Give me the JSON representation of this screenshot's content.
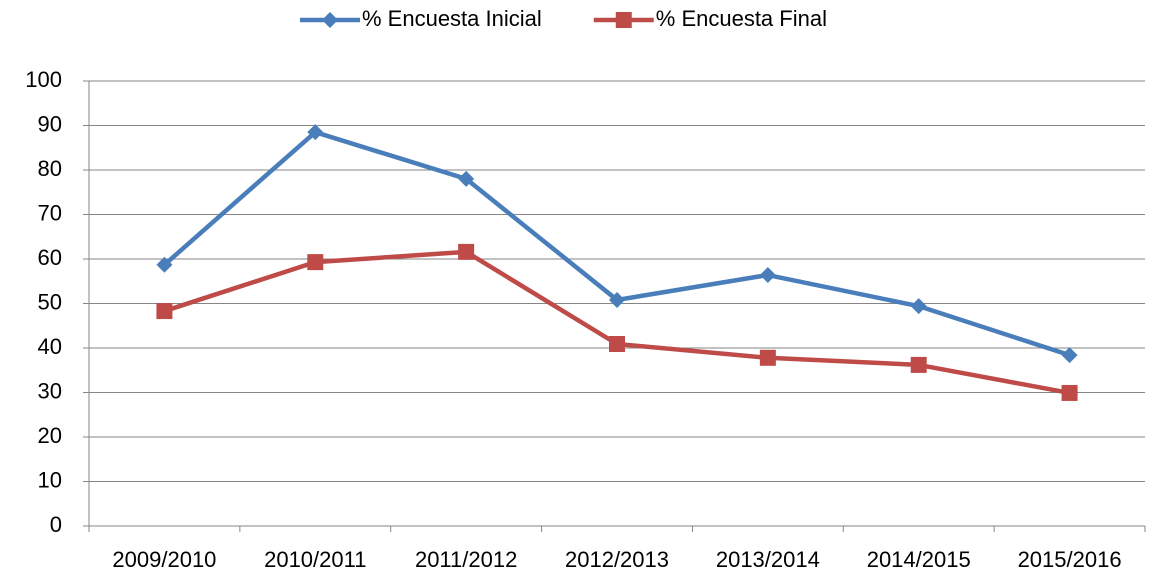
{
  "chart_data": {
    "type": "line",
    "categories": [
      "2009/2010",
      "2010/2011",
      "2011/2012",
      "2012/2013",
      "2013/2014",
      "2014/2015",
      "2015/2016"
    ],
    "series": [
      {
        "name": "% Encuesta Inicial",
        "color": "#4a7ebb",
        "marker": "diamond",
        "values": [
          58.7,
          88.5,
          78.0,
          50.8,
          56.4,
          49.4,
          38.4
        ]
      },
      {
        "name": "% Encuesta Final",
        "color": "#be4b48",
        "marker": "square",
        "values": [
          48.3,
          59.3,
          61.6,
          40.9,
          37.8,
          36.2,
          29.9
        ]
      }
    ],
    "ylim": [
      0,
      100
    ],
    "yticks": [
      0,
      10,
      20,
      30,
      40,
      50,
      60,
      70,
      80,
      90,
      100
    ],
    "grid": true,
    "legend": "top"
  }
}
